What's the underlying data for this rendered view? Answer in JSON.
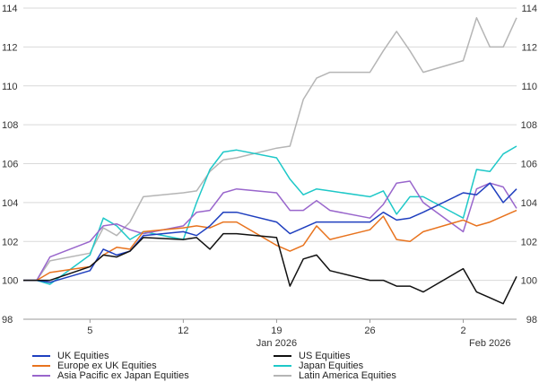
{
  "chart_data": {
    "type": "line",
    "title": "",
    "xlabel": "",
    "ylabel": "",
    "ylim": [
      98,
      114
    ],
    "yticks": [
      98,
      100,
      102,
      104,
      106,
      108,
      110,
      112,
      114
    ],
    "grid": true,
    "legend_position": "bottom",
    "x": [
      "2025-12-31",
      "2026-01-01",
      "2026-01-02",
      "2026-01-05",
      "2026-01-06",
      "2026-01-07",
      "2026-01-08",
      "2026-01-09",
      "2026-01-12",
      "2026-01-13",
      "2026-01-14",
      "2026-01-15",
      "2026-01-16",
      "2026-01-19",
      "2026-01-20",
      "2026-01-21",
      "2026-01-22",
      "2026-01-23",
      "2026-01-26",
      "2026-01-27",
      "2026-01-28",
      "2026-01-29",
      "2026-01-30",
      "2026-02-02",
      "2026-02-03",
      "2026-02-04",
      "2026-02-05",
      "2026-02-06"
    ],
    "x_tick_labels": [
      {
        "date": "2026-01-05",
        "label": "5"
      },
      {
        "date": "2026-01-12",
        "label": "12"
      },
      {
        "date": "2026-01-19",
        "label": "19"
      },
      {
        "date": "2026-01-26",
        "label": "26"
      },
      {
        "date": "2026-02-02",
        "label": "2"
      }
    ],
    "x_month_labels": [
      {
        "date": "2026-01-19",
        "label": "Jan 2026"
      },
      {
        "date": "2026-02-04",
        "label": "Feb 2026"
      }
    ],
    "series": [
      {
        "name": "UK Equities",
        "color": "#1f3fbf",
        "values": [
          100.0,
          100.0,
          99.9,
          100.5,
          101.6,
          101.3,
          101.5,
          102.3,
          102.5,
          102.3,
          102.8,
          103.5,
          103.5,
          103.0,
          102.4,
          102.7,
          103.0,
          103.0,
          103.0,
          103.5,
          103.1,
          103.2,
          103.5,
          104.5,
          104.4,
          105.0,
          104.0,
          104.7
        ]
      },
      {
        "name": "US Equities",
        "color": "#111111",
        "values": [
          100.0,
          100.0,
          100.0,
          100.7,
          101.3,
          101.2,
          101.5,
          102.2,
          102.1,
          102.2,
          101.6,
          102.4,
          102.4,
          102.2,
          99.7,
          101.1,
          101.3,
          100.5,
          100.0,
          100.0,
          99.7,
          99.7,
          99.4,
          100.6,
          99.4,
          99.1,
          98.8,
          100.2
        ]
      },
      {
        "name": "Europe ex UK Equities",
        "color": "#e8731e",
        "values": [
          100.0,
          100.0,
          100.4,
          100.7,
          101.3,
          101.7,
          101.6,
          102.5,
          102.7,
          102.8,
          102.7,
          103.0,
          103.0,
          101.8,
          101.5,
          101.8,
          102.8,
          102.1,
          102.6,
          103.3,
          102.1,
          102.0,
          102.5,
          103.1,
          102.8,
          103.0,
          103.3,
          103.6
        ]
      },
      {
        "name": "Japan Equities",
        "color": "#1ec8c8",
        "values": [
          100.0,
          100.0,
          99.8,
          101.3,
          103.2,
          102.8,
          102.1,
          102.5,
          102.1,
          104.0,
          105.7,
          106.6,
          106.7,
          106.3,
          105.2,
          104.4,
          104.7,
          104.6,
          104.3,
          104.6,
          103.4,
          104.3,
          104.3,
          103.2,
          105.7,
          105.6,
          106.5,
          106.9
        ]
      },
      {
        "name": "Asia Pacific ex Japan Equities",
        "color": "#9966cc",
        "values": [
          100.0,
          100.0,
          101.2,
          102.0,
          102.8,
          102.9,
          102.6,
          102.4,
          102.8,
          103.5,
          103.6,
          104.5,
          104.7,
          104.5,
          103.6,
          103.6,
          104.1,
          103.6,
          103.2,
          103.9,
          105.0,
          105.1,
          104.0,
          102.5,
          104.7,
          105.0,
          104.8,
          103.7
        ]
      },
      {
        "name": "Latin America Equities",
        "color": "#b5b5b5",
        "values": [
          100.0,
          100.0,
          101.0,
          101.4,
          102.7,
          102.3,
          103.0,
          104.3,
          104.5,
          104.6,
          105.6,
          106.2,
          106.3,
          106.8,
          106.9,
          109.3,
          110.4,
          110.7,
          110.7,
          111.8,
          112.8,
          111.8,
          110.7,
          111.3,
          113.5,
          112.0,
          112.0,
          113.5
        ]
      }
    ]
  }
}
